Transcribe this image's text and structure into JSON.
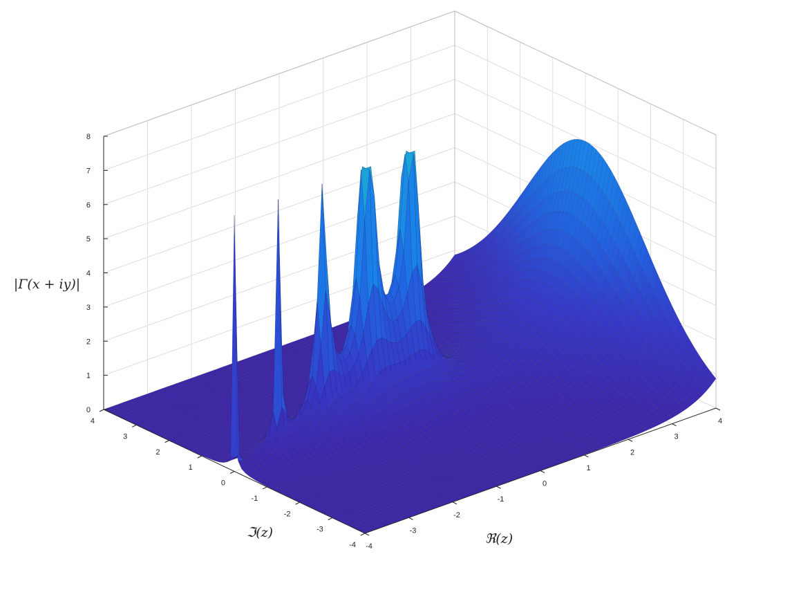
{
  "chart_data": {
    "type": "surface",
    "function": "|Γ(x+iy)|",
    "x": {
      "label": "ℜ(z)",
      "range": [
        -4,
        4
      ],
      "ticks": [
        "-4",
        "-3",
        "-2",
        "-1",
        "0",
        "1",
        "2",
        "3",
        "4"
      ]
    },
    "y": {
      "label": "ℑ(z)",
      "range": [
        -4,
        4
      ],
      "ticks": [
        "-4",
        "-3",
        "-2",
        "-1",
        "0",
        "1",
        "2",
        "3",
        "4"
      ]
    },
    "z": {
      "label": "|Γ(x + iy)|",
      "range": [
        0,
        8
      ],
      "clip_max": 7.5,
      "ticks": [
        "0",
        "1",
        "2",
        "3",
        "4",
        "5",
        "6",
        "7",
        "8"
      ]
    },
    "grid": true,
    "colormap": "parula",
    "colors": {
      "low": "#3e26a8",
      "mid": "#1a7ae6",
      "high": "#1ea8d8",
      "edge": "#1a1a40"
    }
  }
}
